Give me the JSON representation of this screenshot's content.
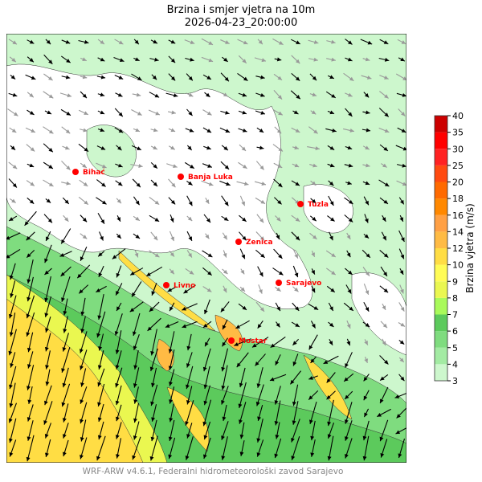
{
  "title": "Brzina i smjer vjetra na 10m",
  "subtitle": "2026-04-23_20:00:00",
  "colorbar": {
    "label": "Brzina vjetra (m/s)",
    "ticks": [
      "3",
      "4",
      "5",
      "6",
      "7",
      "8",
      "9",
      "10",
      "12",
      "14",
      "16",
      "18",
      "20",
      "25",
      "30",
      "35",
      "40"
    ],
    "colors": [
      "#cdf7cd",
      "#a3eba3",
      "#7fdc7f",
      "#5cca5c",
      "#a9fa5a",
      "#eaf750",
      "#fffc55",
      "#ffdd44",
      "#ffbb44",
      "#ffa044",
      "#ff8800",
      "#ff6a00",
      "#ff4a10",
      "#ff2222",
      "#ff0000",
      "#cc0000"
    ]
  },
  "cities": [
    {
      "name": "Bihać"
    },
    {
      "name": "Banja Luka"
    },
    {
      "name": "Tuzla"
    },
    {
      "name": "Zenica"
    },
    {
      "name": "Livno"
    },
    {
      "name": "Sarajevo"
    },
    {
      "name": "Mostar"
    }
  ],
  "city_color": "#ff0000",
  "footer": "WRF-ARW v4.6.1, Federalni hidrometeorološki zavod Sarajevo"
}
